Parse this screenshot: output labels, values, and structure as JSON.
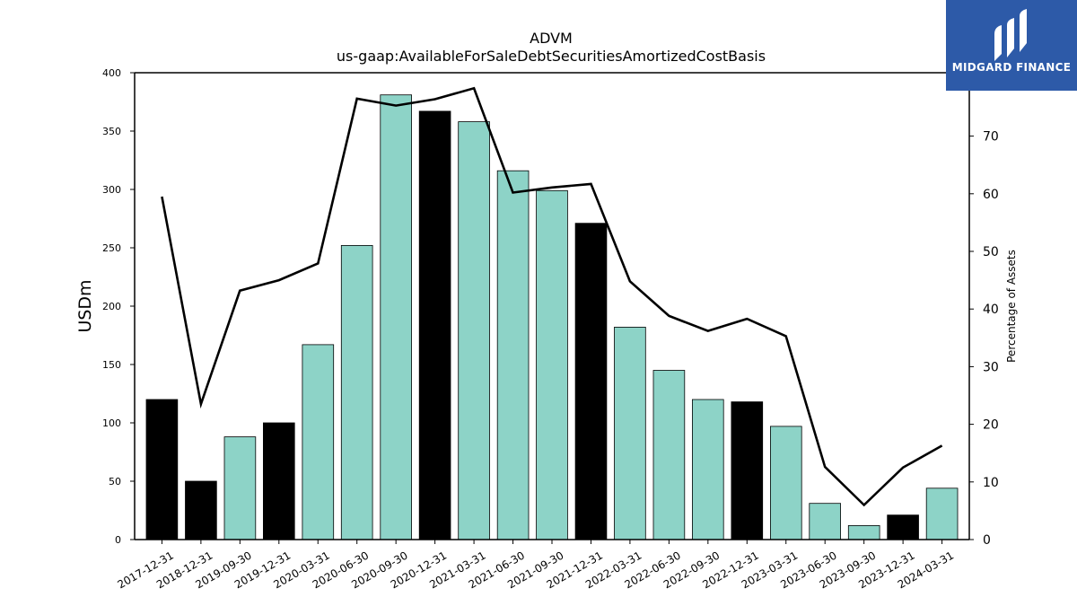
{
  "brand": {
    "name": "MIDGARD FINANCE",
    "logo_icon": "midgard-logo-icon",
    "background_color": "#2d5aa8"
  },
  "chart_data": {
    "type": "bar",
    "title": "ADVM",
    "subtitle": "us-gaap:AvailableForSaleDebtSecuritiesAmortizedCostBasis",
    "ylabel": "USDm",
    "y2label": "Percentage of Assets",
    "ylim": [
      0,
      400
    ],
    "y2lim": [
      0,
      81
    ],
    "yticks": [
      0,
      50,
      100,
      150,
      200,
      250,
      300,
      350,
      400
    ],
    "y2ticks": [
      0,
      10,
      20,
      30,
      40,
      50,
      60,
      70
    ],
    "categories": [
      "2017-12-31",
      "2018-12-31",
      "2019-09-30",
      "2019-12-31",
      "2020-03-31",
      "2020-06-30",
      "2020-09-30",
      "2020-12-31",
      "2021-03-31",
      "2021-06-30",
      "2021-09-30",
      "2021-12-31",
      "2022-03-31",
      "2022-06-30",
      "2022-09-30",
      "2022-12-31",
      "2023-03-31",
      "2023-06-30",
      "2023-09-30",
      "2023-12-31",
      "2024-03-31"
    ],
    "series": [
      {
        "type": "bar",
        "axis": "left",
        "values": [
          120,
          50,
          88,
          100,
          167,
          252,
          381,
          367,
          358,
          316,
          299,
          271,
          182,
          145,
          120,
          118,
          97,
          31,
          12,
          21,
          44
        ]
      },
      {
        "type": "line",
        "axis": "right",
        "color": "#000000",
        "values": [
          59.5,
          23.5,
          43.2,
          45.0,
          47.9,
          76.5,
          75.3,
          76.4,
          78.3,
          60.2,
          61.1,
          61.7,
          44.8,
          38.8,
          36.2,
          38.3,
          35.3,
          12.6,
          6.0,
          12.5,
          16.3
        ]
      }
    ],
    "bar_colors": [
      "#000000",
      "#000000",
      "#8dd3c7",
      "#000000",
      "#8dd3c7",
      "#8dd3c7",
      "#8dd3c7",
      "#000000",
      "#8dd3c7",
      "#8dd3c7",
      "#8dd3c7",
      "#000000",
      "#8dd3c7",
      "#8dd3c7",
      "#8dd3c7",
      "#000000",
      "#8dd3c7",
      "#8dd3c7",
      "#8dd3c7",
      "#000000",
      "#8dd3c7"
    ],
    "grid": false,
    "legend": "none"
  }
}
